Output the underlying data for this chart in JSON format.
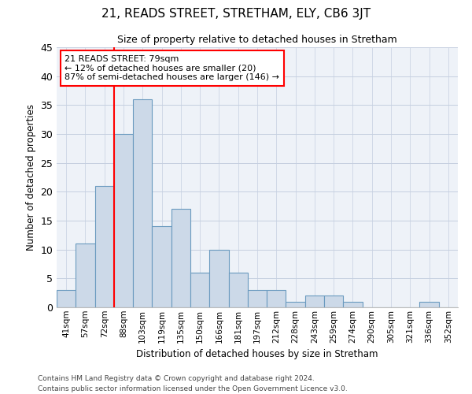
{
  "title": "21, READS STREET, STRETHAM, ELY, CB6 3JT",
  "subtitle": "Size of property relative to detached houses in Stretham",
  "xlabel": "Distribution of detached houses by size in Stretham",
  "ylabel": "Number of detached properties",
  "bar_color": "#ccd9e8",
  "bar_edge_color": "#6a9abf",
  "grid_color": "#c5cfe0",
  "background_color": "#eef2f8",
  "categories": [
    "41sqm",
    "57sqm",
    "72sqm",
    "88sqm",
    "103sqm",
    "119sqm",
    "135sqm",
    "150sqm",
    "166sqm",
    "181sqm",
    "197sqm",
    "212sqm",
    "228sqm",
    "243sqm",
    "259sqm",
    "274sqm",
    "290sqm",
    "305sqm",
    "321sqm",
    "336sqm",
    "352sqm"
  ],
  "values": [
    3,
    11,
    21,
    30,
    36,
    14,
    17,
    6,
    10,
    6,
    3,
    3,
    1,
    2,
    2,
    1,
    0,
    0,
    0,
    1,
    0
  ],
  "ylim": [
    0,
    45
  ],
  "yticks": [
    0,
    5,
    10,
    15,
    20,
    25,
    30,
    35,
    40,
    45
  ],
  "vline_index": 3,
  "annotation_text": "21 READS STREET: 79sqm\n← 12% of detached houses are smaller (20)\n87% of semi-detached houses are larger (146) →",
  "annotation_box_color": "white",
  "annotation_box_edge": "red",
  "vline_color": "red",
  "footer_line1": "Contains HM Land Registry data © Crown copyright and database right 2024.",
  "footer_line2": "Contains public sector information licensed under the Open Government Licence v3.0."
}
